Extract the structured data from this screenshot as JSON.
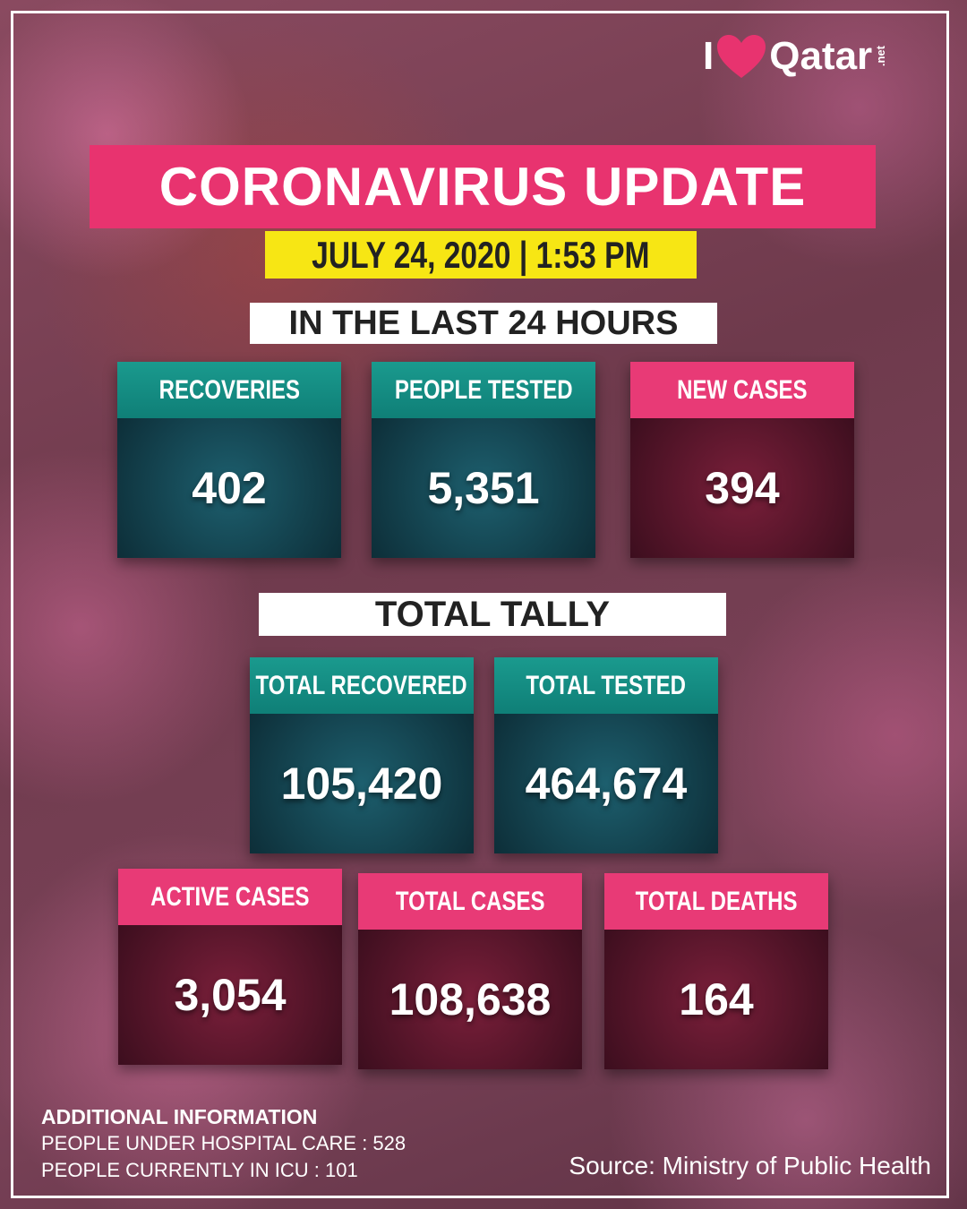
{
  "logo": {
    "prefix": "I",
    "name": "Qatar",
    "suffix": ".net"
  },
  "header": {
    "title": "CORONAVIRUS UPDATE",
    "date": "JULY 24, 2020 | 1:53 PM"
  },
  "last_24_hours": {
    "title": "IN THE LAST 24 HOURS",
    "cards": [
      {
        "label": "RECOVERIES",
        "value": "402"
      },
      {
        "label": "PEOPLE TESTED",
        "value": "5,351"
      },
      {
        "label": "NEW CASES",
        "value": "394"
      }
    ]
  },
  "total_tally": {
    "title": "TOTAL TALLY",
    "cards": [
      {
        "label": "TOTAL RECOVERED",
        "value": "105,420"
      },
      {
        "label": "TOTAL TESTED",
        "value": "464,674"
      },
      {
        "label": "ACTIVE CASES",
        "value": "3,054"
      },
      {
        "label": "TOTAL CASES",
        "value": "108,638"
      },
      {
        "label": "TOTAL DEATHS",
        "value": "164"
      }
    ]
  },
  "additional_information": {
    "title": "ADDITIONAL INFORMATION",
    "lines": [
      "PEOPLE UNDER HOSPITAL CARE : 528",
      "PEOPLE CURRENTLY IN ICU : 101"
    ]
  },
  "footer": {
    "source": "Source: Ministry of Public Health"
  }
}
